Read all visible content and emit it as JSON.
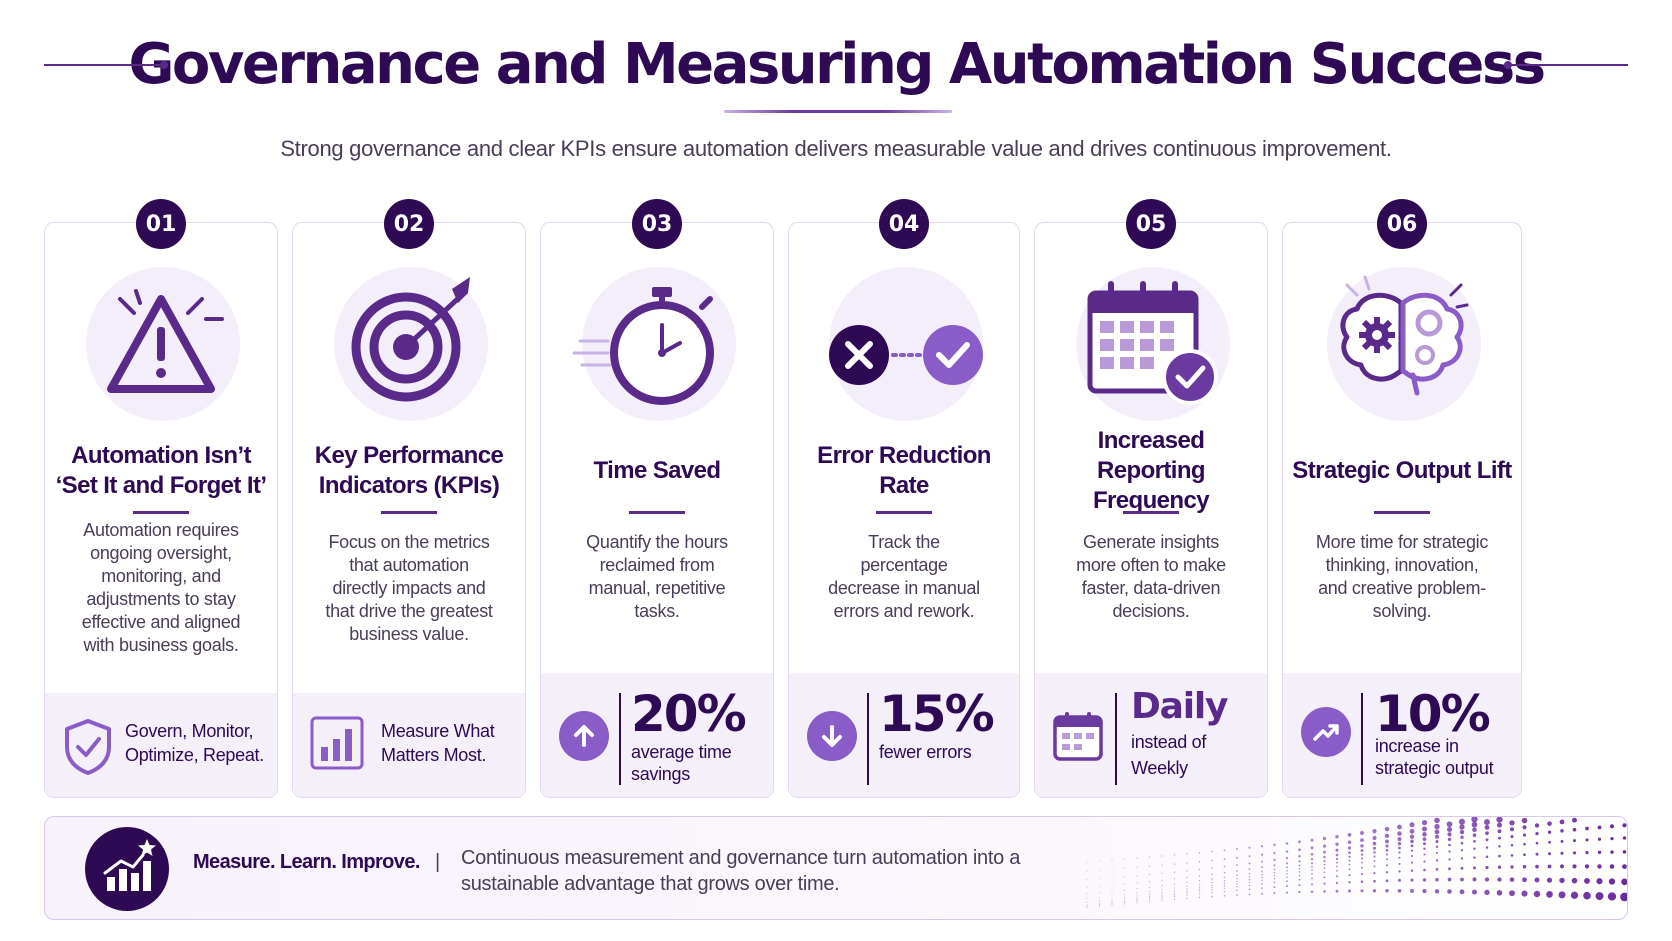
{
  "header": {
    "title": "Governance and Measuring Automation Success",
    "subtitle": "Strong governance and clear KPIs ensure automation delivers measurable value and drives continuous improvement."
  },
  "colors": {
    "primary": "#2e0a55",
    "accent": "#8a5cc8",
    "soft": "#f4eefa"
  },
  "cards": [
    {
      "number": "01",
      "icon": "warning-triangle-icon",
      "title": "Automation Isn’t ‘Set It and Forget It’",
      "description": "Automation requires ongoing oversight, monitoring, and adjustments to stay effective and aligned with business goals.",
      "footer_icon": "shield-check-icon",
      "footer_text": "Govern, Monitor, Optimize, Repeat."
    },
    {
      "number": "02",
      "icon": "target-icon",
      "title": "Key Performance Indicators (KPIs)",
      "description": "Focus on the metrics that automation directly impacts and that drive the greatest business value.",
      "footer_icon": "bar-chart-icon",
      "footer_text": "Measure What Matters Most."
    },
    {
      "number": "03",
      "icon": "stopwatch-icon",
      "title": "Time Saved",
      "description": "Quantify the hours reclaimed from manual, repetitive tasks.",
      "footer_icon": "arrow-up-icon",
      "metric": "20%",
      "metric_label": "average time savings"
    },
    {
      "number": "04",
      "icon": "error-to-check-icon",
      "title": "Error Reduction Rate",
      "description": "Track the percentage decrease in manual errors and rework.",
      "footer_icon": "arrow-down-icon",
      "metric": "15%",
      "metric_label": "fewer errors"
    },
    {
      "number": "05",
      "icon": "calendar-check-icon",
      "title": "Increased Reporting Frequency",
      "description": "Generate insights more often to make faster, data-driven decisions.",
      "footer_icon": "calendar-icon",
      "metric": "Daily",
      "metric_label": "instead of Weekly"
    },
    {
      "number": "06",
      "icon": "brain-gears-icon",
      "title": "Strategic Output Lift",
      "description": "More time for strategic thinking, innovation, and creative problem-solving.",
      "footer_icon": "trend-up-icon",
      "metric": "10%",
      "metric_label": "increase in strategic output"
    }
  ],
  "banner": {
    "icon": "chart-star-icon",
    "headline": "Measure. Learn. Improve.",
    "separator": "|",
    "text": "Continuous measurement and governance turn automation into a sustainable advantage that grows over time."
  }
}
